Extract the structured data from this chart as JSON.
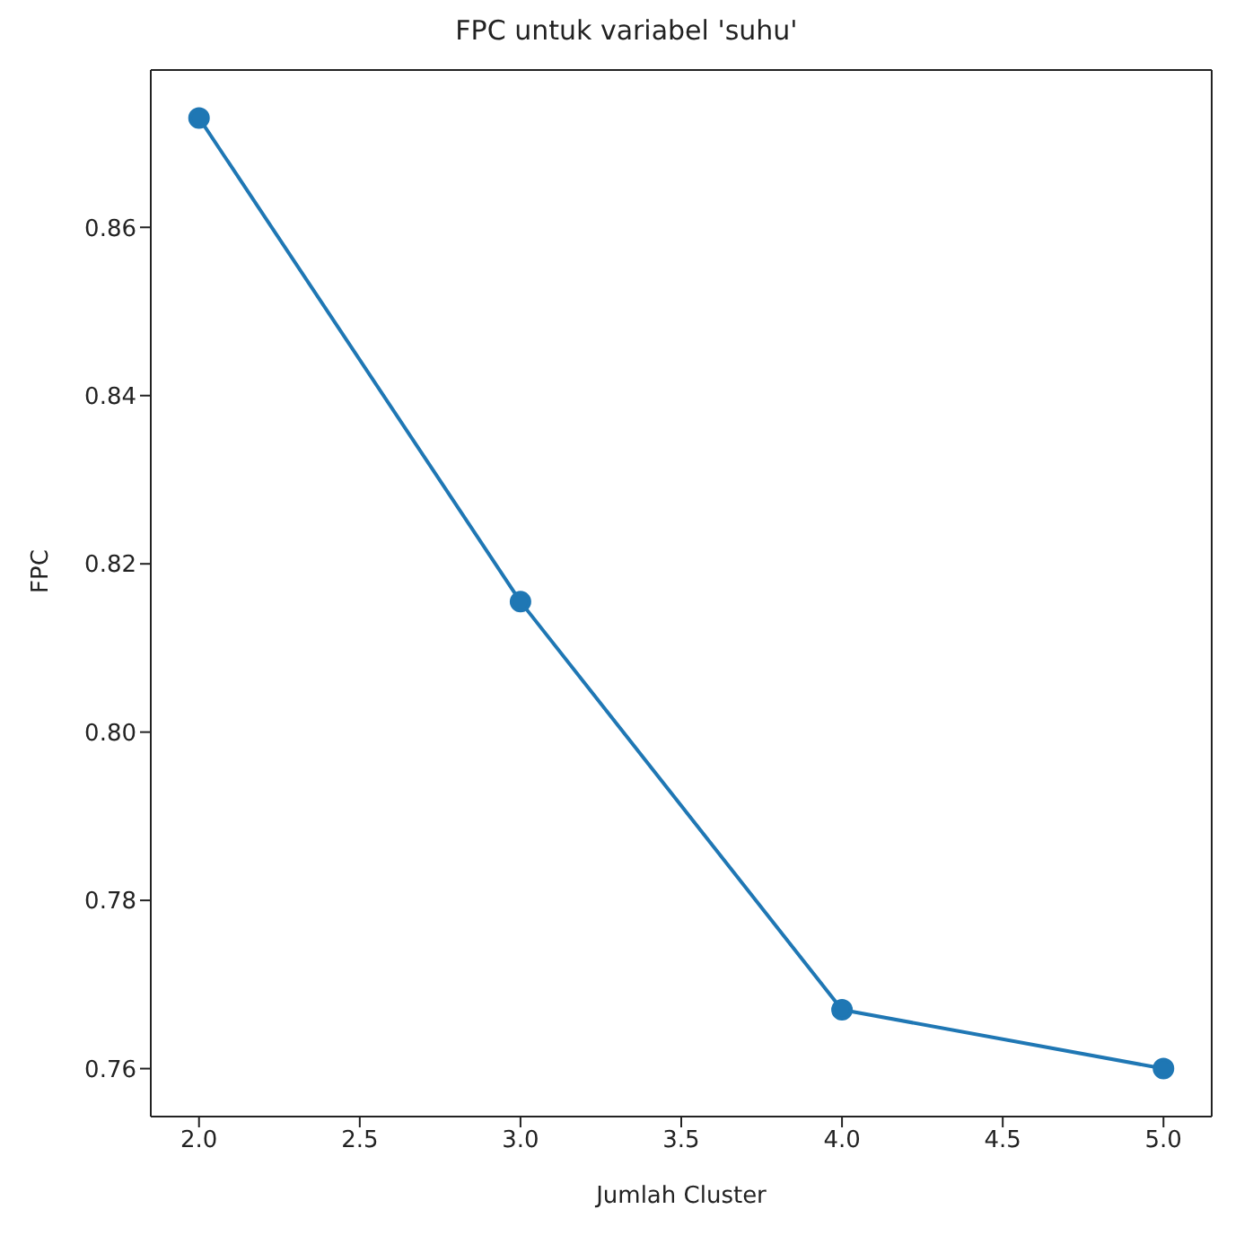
{
  "chart_data": {
    "type": "line",
    "title": "FPC untuk variabel 'suhu'",
    "xlabel": "Jumlah Cluster",
    "ylabel": "FPC",
    "x": [
      2,
      3,
      4,
      5
    ],
    "series": [
      {
        "color": "#1f77b4",
        "values": [
          0.873,
          0.8155,
          0.767,
          0.76
        ]
      }
    ],
    "xlim": [
      1.85,
      5.15
    ],
    "xticks": [
      {
        "value": 2,
        "label": "2.0"
      },
      {
        "value": 2.5,
        "label": "2.5"
      },
      {
        "value": 3,
        "label": "3.0"
      },
      {
        "value": 3.5,
        "label": "3.5"
      },
      {
        "value": 4,
        "label": "4.0"
      },
      {
        "value": 4.5,
        "label": "4.5"
      },
      {
        "value": 5,
        "label": "5.0"
      }
    ],
    "ylim": [
      0.7543,
      0.8787
    ],
    "yticks": [
      {
        "value": 0.76,
        "label": "0.76"
      },
      {
        "value": 0.78,
        "label": "0.78"
      },
      {
        "value": 0.8,
        "label": "0.80"
      },
      {
        "value": 0.82,
        "label": "0.82"
      },
      {
        "value": 0.84,
        "label": "0.84"
      },
      {
        "value": 0.86,
        "label": "0.86"
      }
    ],
    "marker": "circle",
    "line_style": "solid",
    "grid": false,
    "legend": false
  }
}
